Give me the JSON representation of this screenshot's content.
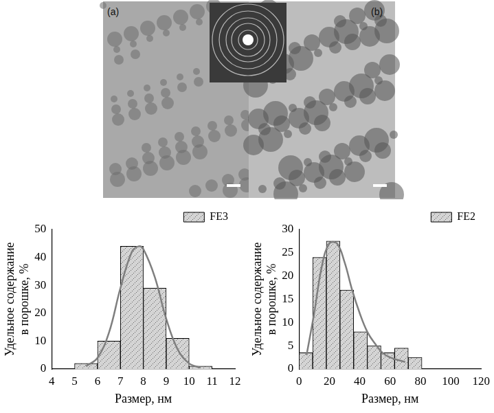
{
  "images": {
    "labels": [
      "(a)",
      "(b)"
    ]
  },
  "chart_data": [
    {
      "type": "histogram",
      "bins": [
        5,
        6,
        7,
        8,
        9,
        10,
        11
      ],
      "series": [
        {
          "name": "FE3",
          "type": "bar",
          "color": "#d4d4d4",
          "values": [
            2,
            10,
            44,
            29,
            11,
            1
          ]
        },
        {
          "type": "line",
          "color": "#7f7f7f",
          "line_style": "solid",
          "x": [
            5.5,
            6,
            6.5,
            7,
            7.5,
            7.8,
            8,
            8.5,
            9,
            9.5,
            10,
            10.5
          ],
          "values": [
            1,
            4,
            13,
            29,
            42,
            44,
            43,
            33,
            18,
            7,
            2,
            0.5
          ]
        }
      ],
      "xlabel": "Размер, нм",
      "ylabel": "Удельное содержание в порошке, %",
      "xlim": [
        4,
        12
      ],
      "xticks": [
        4,
        5,
        6,
        7,
        8,
        9,
        10,
        11,
        12
      ],
      "ylim": [
        0,
        50
      ],
      "yticks": [
        0,
        10,
        20,
        30,
        40,
        50
      ],
      "grid": false,
      "legend": "upper right"
    },
    {
      "type": "histogram",
      "bins": [
        0,
        9,
        18,
        27,
        36,
        45,
        54,
        63,
        72,
        81
      ],
      "series": [
        {
          "name": "FE2",
          "type": "bar",
          "color": "#d4d4d4",
          "values": [
            3.5,
            24,
            27.5,
            17,
            8,
            5,
            3.5,
            4.5,
            2.5
          ]
        },
        {
          "type": "line",
          "color": "#7f7f7f",
          "line_style": "solid",
          "x": [
            5,
            10,
            15,
            20,
            25,
            30,
            35,
            40,
            45,
            50,
            55,
            60,
            70
          ],
          "values": [
            3,
            12,
            22,
            27,
            27,
            23,
            17,
            12,
            8,
            5.5,
            3.5,
            2.5,
            1.5
          ]
        }
      ],
      "xlabel": "Размер, нм",
      "ylabel": "Удельное содержание в порошке, %",
      "xlim": [
        0,
        120
      ],
      "xticks": [
        0,
        20,
        40,
        60,
        80,
        100,
        120
      ],
      "ylim": [
        0,
        30
      ],
      "yticks": [
        0,
        5,
        10,
        15,
        20,
        25,
        30
      ],
      "grid": false,
      "legend": "upper right"
    }
  ]
}
